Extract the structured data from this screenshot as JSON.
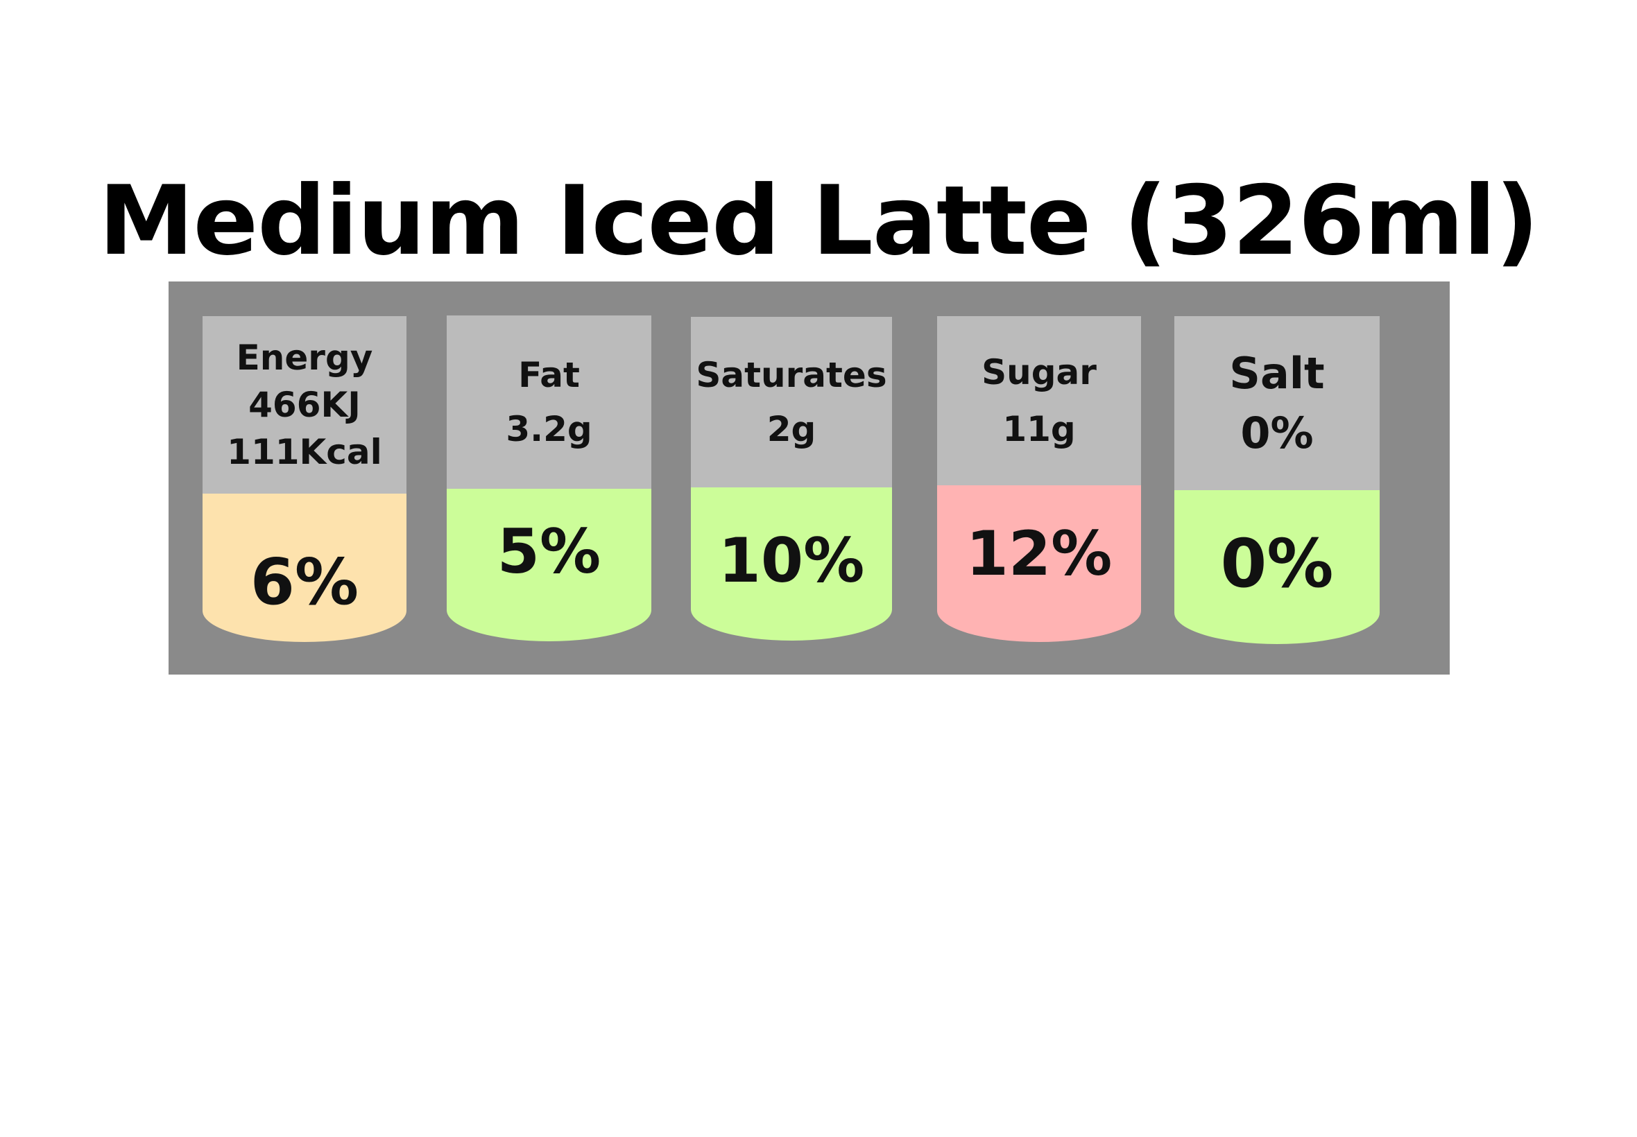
{
  "title": "Medium Iced Latte (326ml)",
  "colors": {
    "panel": "#8a8a8a",
    "header": "#bbbbbb",
    "amber": "#fde2ad",
    "green": "#ccfd99",
    "red": "#ffb3b3"
  },
  "items": [
    {
      "lines": [
        "Energy",
        "466KJ",
        "111Kcal"
      ],
      "percent": "6%",
      "color": "#fde2ad"
    },
    {
      "lines": [
        "Fat",
        "3.2g"
      ],
      "percent": "5%",
      "color": "#ccfd99"
    },
    {
      "lines": [
        "Saturates",
        "2g"
      ],
      "percent": "10%",
      "color": "#ccfd99"
    },
    {
      "lines": [
        "Sugar",
        "11g"
      ],
      "percent": "12%",
      "color": "#ffb3b3"
    },
    {
      "lines": [
        "Salt",
        "0%"
      ],
      "percent": "0%",
      "color": "#ccfd99"
    }
  ]
}
